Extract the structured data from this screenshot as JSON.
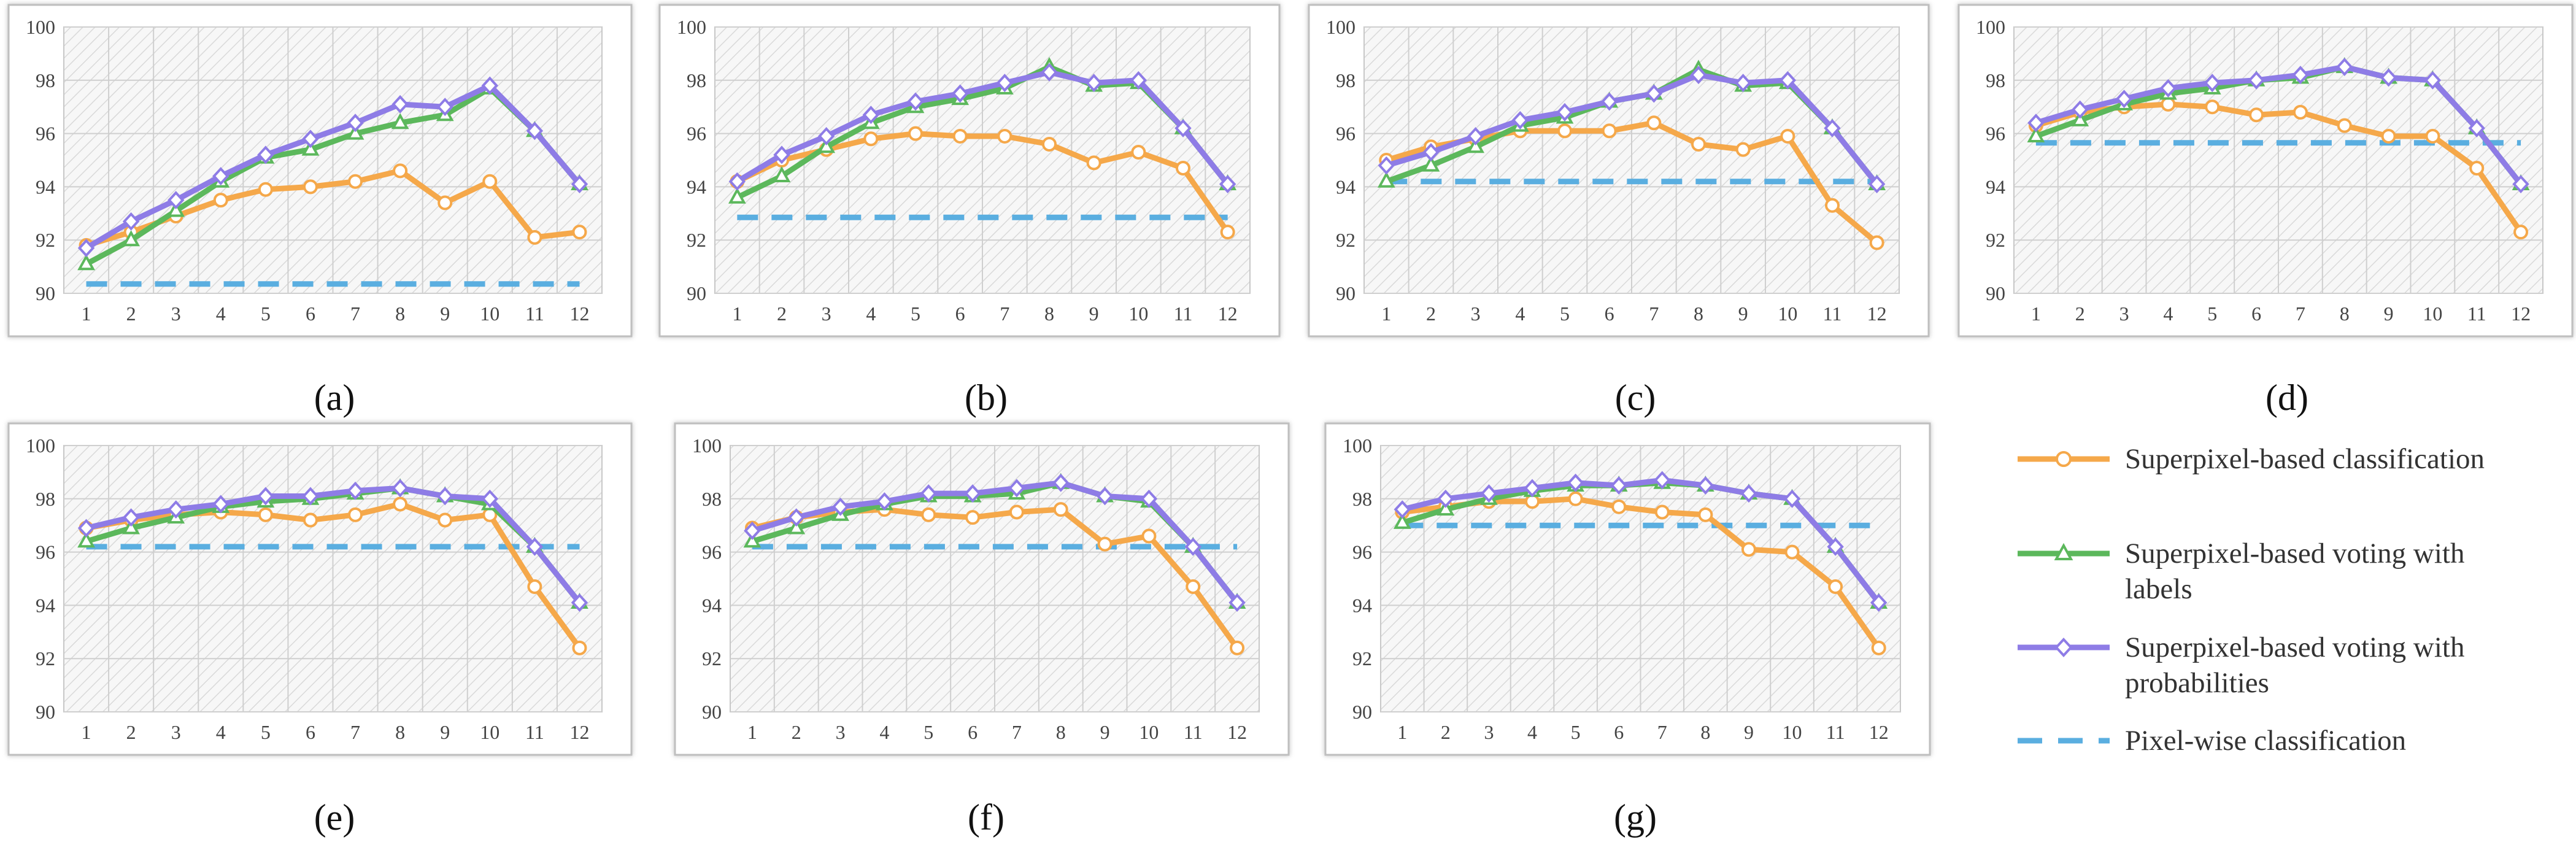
{
  "figure_colors": {
    "superpixel_classification": "#F5A84A",
    "voting_labels": "#5CB85C",
    "voting_probabilities": "#8E7CE6",
    "pixelwise": "#5AAEE0"
  },
  "legend": {
    "items": [
      {
        "key": "superpixel_classification",
        "lines": [
          "Superpixel-based classification"
        ],
        "marker": "circle",
        "dashed": false
      },
      {
        "key": "voting_labels",
        "lines": [
          "Superpixel-based voting with",
          "labels"
        ],
        "marker": "triangle",
        "dashed": false
      },
      {
        "key": "voting_probabilities",
        "lines": [
          "Superpixel-based voting with",
          "probabilities"
        ],
        "marker": "diamond",
        "dashed": false
      },
      {
        "key": "pixelwise",
        "lines": [
          "Pixel-wise classification"
        ],
        "marker": "none",
        "dashed": true
      }
    ]
  },
  "chart_data": [
    {
      "type": "line",
      "subplot_label": "(a)",
      "categories": [
        "1",
        "2",
        "3",
        "4",
        "5",
        "6",
        "7",
        "8",
        "9",
        "10",
        "11",
        "12"
      ],
      "ylim": [
        90,
        100
      ],
      "yticks": [
        "90",
        "92",
        "94",
        "96",
        "98",
        "100"
      ],
      "series": [
        {
          "key": "superpixel_classification",
          "name": "Superpixel-based classification",
          "values": [
            91.8,
            92.3,
            92.9,
            93.5,
            93.9,
            94.0,
            94.2,
            94.6,
            93.4,
            94.2,
            92.1,
            92.3
          ]
        },
        {
          "key": "voting_labels",
          "name": "Superpixel-based voting with labels",
          "values": [
            91.1,
            92.0,
            93.1,
            94.2,
            95.1,
            95.4,
            96.0,
            96.4,
            96.7,
            97.7,
            96.1,
            94.1
          ]
        },
        {
          "key": "voting_probabilities",
          "name": "Superpixel-based voting with probabilities",
          "values": [
            91.7,
            92.7,
            93.5,
            94.4,
            95.2,
            95.8,
            96.4,
            97.1,
            97.0,
            97.8,
            96.1,
            94.1
          ]
        },
        {
          "key": "pixelwise",
          "name": "Pixel-wise classification",
          "values": [
            90.35,
            90.35,
            90.35,
            90.35,
            90.35,
            90.35,
            90.35,
            90.35,
            90.35,
            90.35,
            90.35,
            90.35
          ]
        }
      ]
    },
    {
      "type": "line",
      "subplot_label": "(b)",
      "categories": [
        "1",
        "2",
        "3",
        "4",
        "5",
        "6",
        "7",
        "8",
        "9",
        "10",
        "11",
        "12"
      ],
      "ylim": [
        90,
        100
      ],
      "yticks": [
        "90",
        "92",
        "94",
        "96",
        "98",
        "100"
      ],
      "series": [
        {
          "key": "superpixel_classification",
          "name": "Superpixel-based classification",
          "values": [
            94.2,
            95.0,
            95.4,
            95.8,
            96.0,
            95.9,
            95.9,
            95.6,
            94.9,
            95.3,
            94.7,
            92.3
          ]
        },
        {
          "key": "voting_labels",
          "name": "Superpixel-based voting with labels",
          "values": [
            93.6,
            94.4,
            95.5,
            96.4,
            97.0,
            97.3,
            97.7,
            98.5,
            97.8,
            97.9,
            96.2,
            94.1
          ]
        },
        {
          "key": "voting_probabilities",
          "name": "Superpixel-based voting with probabilities",
          "values": [
            94.2,
            95.2,
            95.9,
            96.7,
            97.2,
            97.5,
            97.9,
            98.3,
            97.9,
            98.0,
            96.2,
            94.1
          ]
        },
        {
          "key": "pixelwise",
          "name": "Pixel-wise classification",
          "values": [
            92.85,
            92.85,
            92.85,
            92.85,
            92.85,
            92.85,
            92.85,
            92.85,
            92.85,
            92.85,
            92.85,
            92.85
          ]
        }
      ]
    },
    {
      "type": "line",
      "subplot_label": "(c)",
      "categories": [
        "1",
        "2",
        "3",
        "4",
        "5",
        "6",
        "7",
        "8",
        "9",
        "10",
        "11",
        "12"
      ],
      "ylim": [
        90,
        100
      ],
      "yticks": [
        "90",
        "92",
        "94",
        "96",
        "98",
        "100"
      ],
      "series": [
        {
          "key": "superpixel_classification",
          "name": "Superpixel-based classification",
          "values": [
            95.0,
            95.5,
            95.8,
            96.1,
            96.1,
            96.1,
            96.4,
            95.6,
            95.4,
            95.9,
            93.3,
            91.9
          ]
        },
        {
          "key": "voting_labels",
          "name": "Superpixel-based voting with labels",
          "values": [
            94.2,
            94.8,
            95.5,
            96.3,
            96.6,
            97.2,
            97.5,
            98.4,
            97.8,
            97.9,
            96.2,
            94.1
          ]
        },
        {
          "key": "voting_probabilities",
          "name": "Superpixel-based voting with probabilities",
          "values": [
            94.8,
            95.3,
            95.9,
            96.5,
            96.8,
            97.2,
            97.5,
            98.2,
            97.9,
            98.0,
            96.2,
            94.1
          ]
        },
        {
          "key": "pixelwise",
          "name": "Pixel-wise classification",
          "values": [
            94.2,
            94.2,
            94.2,
            94.2,
            94.2,
            94.2,
            94.2,
            94.2,
            94.2,
            94.2,
            94.2,
            94.2
          ]
        }
      ]
    },
    {
      "type": "line",
      "subplot_label": "(d)",
      "categories": [
        "1",
        "2",
        "3",
        "4",
        "5",
        "6",
        "7",
        "8",
        "9",
        "10",
        "11",
        "12"
      ],
      "ylim": [
        90,
        100
      ],
      "yticks": [
        "90",
        "92",
        "94",
        "96",
        "98",
        "100"
      ],
      "series": [
        {
          "key": "superpixel_classification",
          "name": "Superpixel-based classification",
          "values": [
            96.3,
            96.8,
            97.0,
            97.1,
            97.0,
            96.7,
            96.8,
            96.3,
            95.9,
            95.9,
            94.7,
            92.3
          ]
        },
        {
          "key": "voting_labels",
          "name": "Superpixel-based voting with labels",
          "values": [
            95.9,
            96.5,
            97.1,
            97.5,
            97.7,
            98.0,
            98.1,
            98.5,
            98.1,
            98.0,
            96.2,
            94.1
          ]
        },
        {
          "key": "voting_probabilities",
          "name": "Superpixel-based voting with probabilities",
          "values": [
            96.4,
            96.9,
            97.3,
            97.7,
            97.9,
            98.0,
            98.2,
            98.5,
            98.1,
            98.0,
            96.2,
            94.1
          ]
        },
        {
          "key": "pixelwise",
          "name": "Pixel-wise classification",
          "values": [
            95.65,
            95.65,
            95.65,
            95.65,
            95.65,
            95.65,
            95.65,
            95.65,
            95.65,
            95.65,
            95.65,
            95.65
          ]
        }
      ]
    },
    {
      "type": "line",
      "subplot_label": "(e)",
      "categories": [
        "1",
        "2",
        "3",
        "4",
        "5",
        "6",
        "7",
        "8",
        "9",
        "10",
        "11",
        "12"
      ],
      "ylim": [
        90,
        100
      ],
      "yticks": [
        "90",
        "92",
        "94",
        "96",
        "98",
        "100"
      ],
      "series": [
        {
          "key": "superpixel_classification",
          "name": "Superpixel-based classification",
          "values": [
            96.9,
            97.2,
            97.4,
            97.5,
            97.4,
            97.2,
            97.4,
            97.8,
            97.2,
            97.4,
            94.7,
            92.4
          ]
        },
        {
          "key": "voting_labels",
          "name": "Superpixel-based voting with labels",
          "values": [
            96.4,
            96.9,
            97.3,
            97.7,
            97.9,
            98.0,
            98.2,
            98.4,
            98.1,
            97.8,
            96.2,
            94.1
          ]
        },
        {
          "key": "voting_probabilities",
          "name": "Superpixel-based voting with probabilities",
          "values": [
            96.9,
            97.3,
            97.6,
            97.8,
            98.1,
            98.1,
            98.3,
            98.4,
            98.1,
            98.0,
            96.2,
            94.1
          ]
        },
        {
          "key": "pixelwise",
          "name": "Pixel-wise classification",
          "values": [
            96.2,
            96.2,
            96.2,
            96.2,
            96.2,
            96.2,
            96.2,
            96.2,
            96.2,
            96.2,
            96.2,
            96.2
          ]
        }
      ]
    },
    {
      "type": "line",
      "subplot_label": "(f)",
      "categories": [
        "1",
        "2",
        "3",
        "4",
        "5",
        "6",
        "7",
        "8",
        "9",
        "10",
        "11",
        "12"
      ],
      "ylim": [
        90,
        100
      ],
      "yticks": [
        "90",
        "92",
        "94",
        "96",
        "98",
        "100"
      ],
      "series": [
        {
          "key": "superpixel_classification",
          "name": "Superpixel-based classification",
          "values": [
            96.9,
            97.3,
            97.5,
            97.6,
            97.4,
            97.3,
            97.5,
            97.6,
            96.3,
            96.6,
            94.7,
            92.4
          ]
        },
        {
          "key": "voting_labels",
          "name": "Superpixel-based voting with labels",
          "values": [
            96.4,
            96.9,
            97.4,
            97.8,
            98.1,
            98.1,
            98.2,
            98.6,
            98.1,
            97.9,
            96.2,
            94.1
          ]
        },
        {
          "key": "voting_probabilities",
          "name": "Superpixel-based voting with probabilities",
          "values": [
            96.8,
            97.3,
            97.7,
            97.9,
            98.2,
            98.2,
            98.4,
            98.6,
            98.1,
            98.0,
            96.2,
            94.1
          ]
        },
        {
          "key": "pixelwise",
          "name": "Pixel-wise classification",
          "values": [
            96.2,
            96.2,
            96.2,
            96.2,
            96.2,
            96.2,
            96.2,
            96.2,
            96.2,
            96.2,
            96.2,
            96.2
          ]
        }
      ]
    },
    {
      "type": "line",
      "subplot_label": "(g)",
      "categories": [
        "1",
        "2",
        "3",
        "4",
        "5",
        "6",
        "7",
        "8",
        "9",
        "10",
        "11",
        "12"
      ],
      "ylim": [
        90,
        100
      ],
      "yticks": [
        "90",
        "92",
        "94",
        "96",
        "98",
        "100"
      ],
      "series": [
        {
          "key": "superpixel_classification",
          "name": "Superpixel-based classification",
          "values": [
            97.5,
            97.7,
            97.9,
            97.9,
            98.0,
            97.7,
            97.5,
            97.4,
            96.1,
            96.0,
            94.7,
            92.4
          ]
        },
        {
          "key": "voting_labels",
          "name": "Superpixel-based voting with labels",
          "values": [
            97.1,
            97.6,
            98.0,
            98.3,
            98.5,
            98.5,
            98.6,
            98.5,
            98.2,
            98.0,
            96.2,
            94.1
          ]
        },
        {
          "key": "voting_probabilities",
          "name": "Superpixel-based voting with probabilities",
          "values": [
            97.6,
            98.0,
            98.2,
            98.4,
            98.6,
            98.5,
            98.7,
            98.5,
            98.2,
            98.0,
            96.2,
            94.1
          ]
        },
        {
          "key": "pixelwise",
          "name": "Pixel-wise classification",
          "values": [
            97.0,
            97.0,
            97.0,
            97.0,
            97.0,
            97.0,
            97.0,
            97.0,
            97.0,
            97.0,
            97.0,
            97.0
          ]
        }
      ]
    }
  ]
}
